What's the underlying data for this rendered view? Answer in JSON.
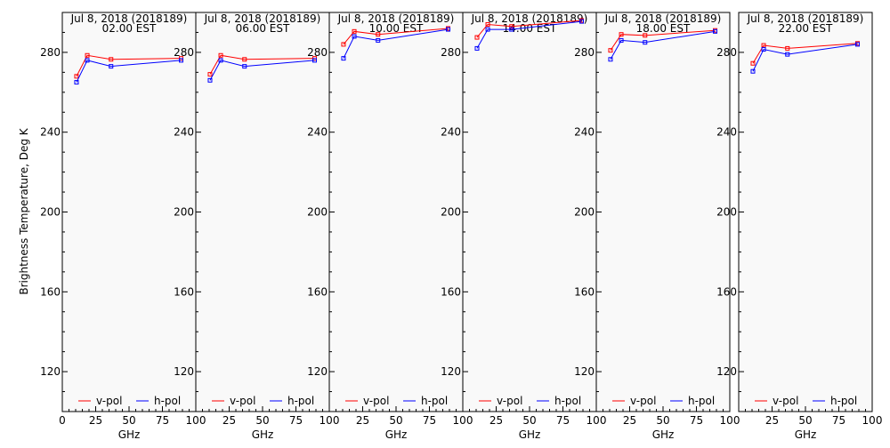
{
  "chart_data": {
    "type": "line",
    "ylabel": "Brightness Temperature, Deg K",
    "xlabel": "GHz",
    "xlim": [
      0,
      100
    ],
    "ylim": [
      100,
      300
    ],
    "x_ticks": [
      0,
      25,
      50,
      75,
      100
    ],
    "y_ticks": [
      120,
      160,
      200,
      240,
      280
    ],
    "grid": false,
    "legend_position": "bottom",
    "series_defs": [
      {
        "name": "v-pol",
        "color": "#ff0000"
      },
      {
        "name": "h-pol",
        "color": "#0000ff"
      }
    ],
    "x": [
      10.65,
      18.7,
      36.5,
      89.0
    ],
    "panels": [
      {
        "title_line1": "Jul  8, 2018 (2018189)",
        "title_line2": "02.00  EST",
        "series": [
          {
            "name": "v-pol",
            "values": [
              268,
              278.5,
              276.5,
              277
            ]
          },
          {
            "name": "h-pol",
            "values": [
              265,
              276,
              273,
              276
            ]
          }
        ]
      },
      {
        "title_line1": "Jul  8, 2018 (2018189)",
        "title_line2": "06.00  EST",
        "series": [
          {
            "name": "v-pol",
            "values": [
              269,
              278.5,
              276.5,
              277
            ]
          },
          {
            "name": "h-pol",
            "values": [
              266,
              276,
              273,
              276
            ]
          }
        ]
      },
      {
        "title_line1": "Jul  8, 2018 (2018189)",
        "title_line2": "10.00  EST",
        "series": [
          {
            "name": "v-pol",
            "values": [
              284,
              290.5,
              289,
              292
            ]
          },
          {
            "name": "h-pol",
            "values": [
              277,
              288,
              286,
              291.5
            ]
          }
        ]
      },
      {
        "title_line1": "Jul  8, 2018 (2018189)",
        "title_line2": "14.00  EST",
        "series": [
          {
            "name": "v-pol",
            "values": [
              287.5,
              294,
              293,
              296
            ]
          },
          {
            "name": "h-pol",
            "values": [
              282,
              291.5,
              291.5,
              295.5
            ]
          }
        ]
      },
      {
        "title_line1": "Jul  8, 2018 (2018189)",
        "title_line2": "18.00  EST",
        "series": [
          {
            "name": "v-pol",
            "values": [
              281,
              289,
              288.5,
              291
            ]
          },
          {
            "name": "h-pol",
            "values": [
              276.5,
              286,
              285,
              290.5
            ]
          }
        ]
      },
      {
        "title_line1": "Jul  8, 2018 (2018189)",
        "title_line2": "22.00  EST",
        "series": [
          {
            "name": "v-pol",
            "values": [
              274.5,
              283.5,
              282,
              284.5
            ]
          },
          {
            "name": "h-pol",
            "values": [
              270.5,
              281.5,
              279,
              284
            ]
          }
        ]
      }
    ]
  }
}
